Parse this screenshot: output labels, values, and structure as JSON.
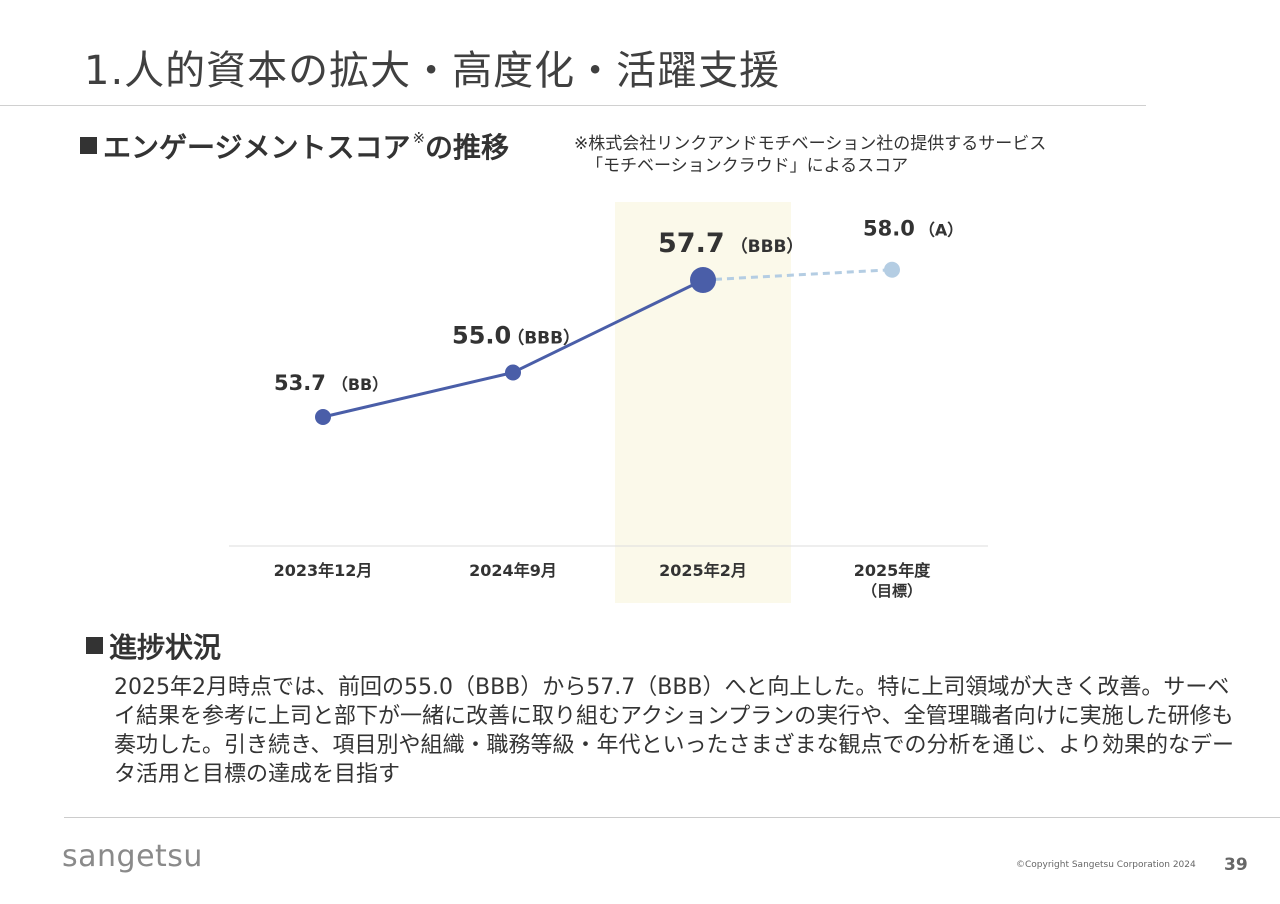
{
  "page": {
    "title": "1.人的資本の拡大・高度化・活躍支援",
    "page_number": "39",
    "copyright": "©Copyright Sangetsu Corporation 2024",
    "logo_text": "sangetsu"
  },
  "section1": {
    "heading": "エンゲージメントスコア",
    "heading_mark": "※",
    "heading_suffix": "の推移",
    "note_line1": "※株式会社リンクアンドモチベーション社の提供するサービス",
    "note_line2": "「モチベーションクラウド」によるスコア"
  },
  "section2": {
    "heading": "進捗状況",
    "body": "2025年2月時点では、前回の55.0（BBB）から57.7（BBB）へと向上した。特に上司領域が大きく改善。サーベイ結果を参考に上司と部下が一緒に改善に取り組むアクションプランの実行や、全管理職者向けに実施した研修も奏功した。引き続き、項目別や組織・職務等級・年代といったさまざまな観点での分析を通じ、より効果的なデータ活用と目標の達成を目指す"
  },
  "chart_data": {
    "type": "line",
    "categories": [
      "2023年12月",
      "2024年9月",
      "2025年2月",
      "2025年度"
    ],
    "category_sublabels": [
      "",
      "",
      "",
      "（目標）"
    ],
    "values": [
      53.7,
      55.0,
      57.7,
      58.0
    ],
    "value_labels": [
      "53.7",
      "55.0",
      "57.7",
      "58.0"
    ],
    "grades": [
      "（BB）",
      "（BBB）",
      "（BBB）",
      "（A）"
    ],
    "highlight_index": 2,
    "target_index": 3,
    "colors": {
      "actual": "#4a5ea8",
      "target": "#b4cde3",
      "highlight_band": "#fbf9ea",
      "baseline": "#dddddd"
    }
  }
}
